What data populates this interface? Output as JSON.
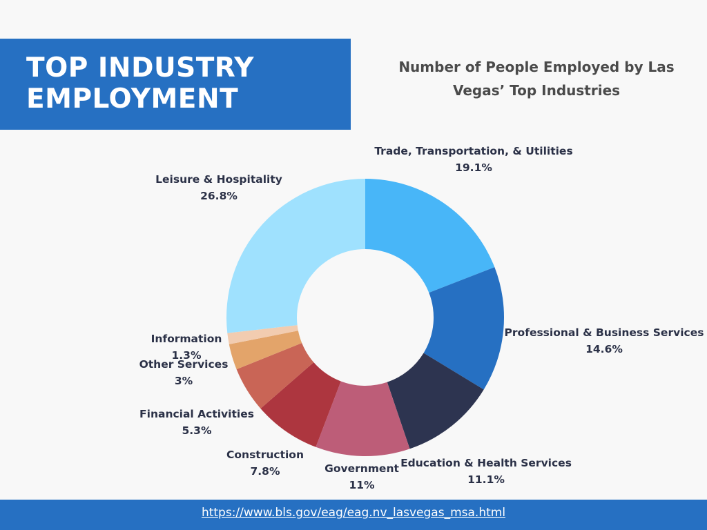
{
  "banner": {
    "line1": "TOP INDUSTRY",
    "line2": "EMPLOYMENT"
  },
  "subtitle": {
    "line1": "Number of People Employed by Las",
    "line2": "Vegas’ Top Industries"
  },
  "footer": {
    "link_text": "https://www.bls.gov/eag/eag.nv_lasvegas_msa.html"
  },
  "chart_data": {
    "type": "pie",
    "donut": true,
    "title": "Number of People Employed by Las Vegas’ Top Industries",
    "unit": "%",
    "slices": [
      {
        "label": "Trade, Transportation, & Utilities",
        "value": 19.1,
        "value_label": "19.1%",
        "color": "#48b6f8"
      },
      {
        "label": "Professional & Business Services",
        "value": 14.6,
        "value_label": "14.6%",
        "color": "#2670c2"
      },
      {
        "label": "Education & Health Services",
        "value": 11.1,
        "value_label": "11.1%",
        "color": "#2d3450"
      },
      {
        "label": "Government",
        "value": 11,
        "value_label": "11%",
        "color": "#bd5d78"
      },
      {
        "label": "Construction",
        "value": 7.8,
        "value_label": "7.8%",
        "color": "#ad363f"
      },
      {
        "label": "Financial Activities",
        "value": 5.3,
        "value_label": "5.3%",
        "color": "#c96556"
      },
      {
        "label": "Other Services",
        "value": 3,
        "value_label": "3%",
        "color": "#e3a46a"
      },
      {
        "label": "Information",
        "value": 1.3,
        "value_label": "1.3%",
        "color": "#f2ccb0"
      },
      {
        "label": "Leisure & Hospitality",
        "value": 26.8,
        "value_label": "26.8%",
        "color": "#9fe1fe"
      }
    ]
  }
}
